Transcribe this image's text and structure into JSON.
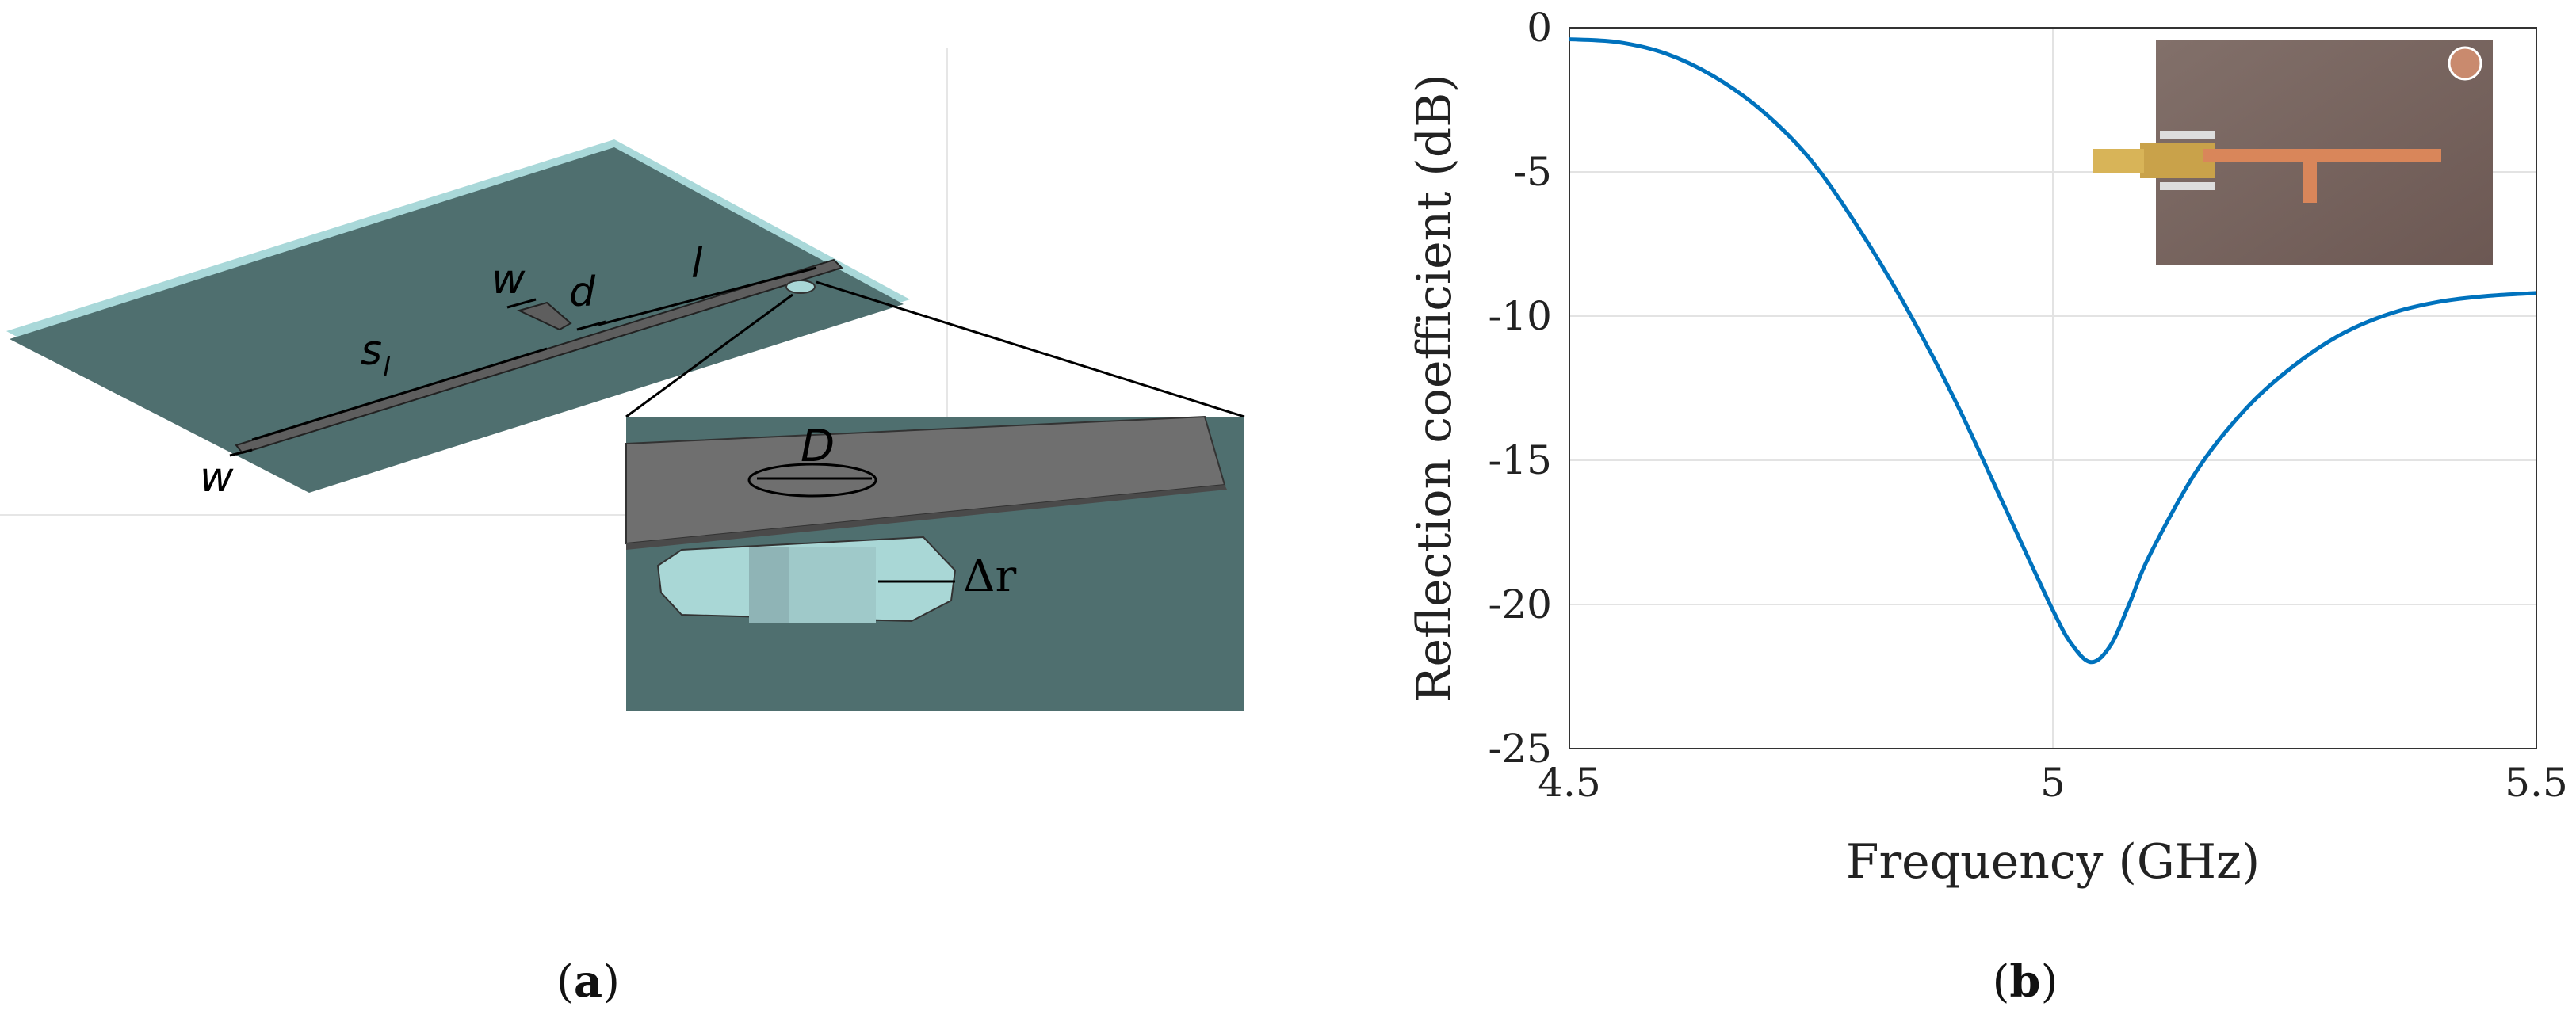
{
  "panel_a": {
    "caption_open": "(",
    "caption_letter": "a",
    "caption_close": ")",
    "labels": {
      "w_top": "w",
      "d": "d",
      "l": "l",
      "s_l": "s",
      "s_l_sub": "l",
      "w_bottom": "w",
      "D": "D",
      "delta_r": "Δr"
    },
    "colors": {
      "board": "#4f6f6f",
      "board_edge": "#a9d8d9",
      "strip": "#5e5e5e",
      "hole": "#a9d7d6",
      "pin": "#9fc9c9"
    }
  },
  "panel_b": {
    "caption_open": "(",
    "caption_letter": "b",
    "caption_close": ")",
    "inset_photo": "photo of fabricated antenna with SMA connector"
  },
  "chart_data": {
    "type": "line",
    "title": "",
    "xlabel": "Frequency (GHz)",
    "ylabel": "Reflection coefficient (dB)",
    "xlim": [
      4.5,
      5.5
    ],
    "ylim": [
      -25,
      0
    ],
    "xticks": [
      4.5,
      5,
      5.5
    ],
    "xtick_labels": [
      "4.5",
      "5",
      "5.5"
    ],
    "yticks": [
      0,
      -5,
      -10,
      -15,
      -20,
      -25
    ],
    "ytick_labels": [
      "0",
      "-5",
      "-10",
      "-15",
      "-20",
      "-25"
    ],
    "grid": true,
    "color": "#0072bd",
    "series": [
      {
        "x": [
          4.5,
          4.55,
          4.6,
          4.65,
          4.7,
          4.75,
          4.8,
          4.85,
          4.9,
          4.95,
          5.0,
          5.02,
          5.04,
          5.06,
          5.08,
          5.1,
          5.15,
          5.2,
          5.25,
          5.3,
          5.35,
          5.4,
          5.45,
          5.5
        ],
        "values": [
          -0.4,
          -0.5,
          -0.9,
          -1.7,
          -2.9,
          -4.6,
          -7.0,
          -9.8,
          -13.0,
          -16.6,
          -20.2,
          -21.4,
          -22.0,
          -21.4,
          -19.9,
          -18.3,
          -15.3,
          -13.2,
          -11.7,
          -10.6,
          -9.9,
          -9.5,
          -9.3,
          -9.2
        ]
      }
    ]
  }
}
